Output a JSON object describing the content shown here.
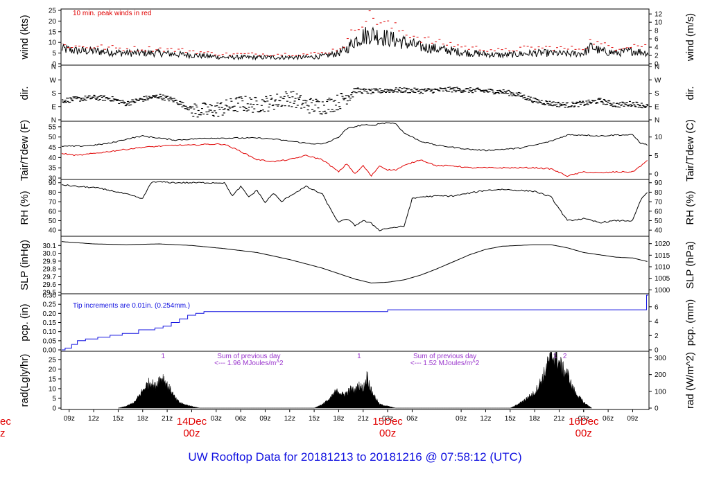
{
  "title": "UW Rooftop Data for 20181213  to  20181216 @ 07:58:12  (UTC)",
  "colors": {
    "text": "#000000",
    "peak": "#e00000",
    "dew": "#e00000",
    "precip": "#1010e0",
    "note": "#9933cc",
    "title": "#1010e0"
  },
  "time_axis": {
    "hours_start": 8.0,
    "hours_end": 80.0,
    "tick_hours": [
      9,
      12,
      15,
      18,
      21,
      27,
      30,
      33,
      36,
      39,
      42,
      45,
      48,
      51,
      57,
      60,
      63,
      66,
      69,
      72,
      75,
      78
    ],
    "tick_labels": [
      "09z",
      "12z",
      "15z",
      "18z",
      "21z",
      "03z",
      "06z",
      "09z",
      "12z",
      "15z",
      "18z",
      "21z",
      "03z",
      "06z",
      "09z",
      "12z",
      "15z",
      "18z",
      "21z",
      "03z",
      "06z",
      "09z"
    ],
    "day_ticks": [
      {
        "hour": 24,
        "label": "14Dec",
        "sub": "00z"
      },
      {
        "hour": 48,
        "label": "15Dec",
        "sub": "00z"
      },
      {
        "hour": 72,
        "label": "16Dec",
        "sub": "00z"
      }
    ],
    "left_cut": {
      "label": "ec",
      "sub": "z"
    }
  },
  "chart_data": [
    {
      "type": "line",
      "id": "wind",
      "ylabel_left": "wind (kts)",
      "ylabel_right": "wind (m/s)",
      "ylim": [
        0,
        25
      ],
      "yticks_left": [
        0,
        5,
        10,
        15,
        20,
        25
      ],
      "right_ylim": [
        0,
        12.86
      ],
      "yticks_right": [
        0,
        2,
        4,
        6,
        8,
        10,
        12
      ],
      "annotation": "10 min. peak winds in red",
      "series": [
        {
          "name": "wind",
          "x": [
            8,
            10,
            12,
            14,
            16,
            18,
            20,
            22,
            24,
            26,
            28,
            30,
            32,
            34,
            36,
            38,
            40,
            42,
            43,
            44,
            45,
            46,
            47,
            48,
            50,
            52,
            54,
            56,
            58,
            60,
            62,
            64,
            66,
            68,
            70,
            72,
            73,
            74,
            76,
            78,
            80
          ],
          "y": [
            7,
            6,
            6,
            5.5,
            5,
            5,
            5,
            4.5,
            4,
            3.5,
            3,
            3,
            3,
            3,
            3,
            3,
            3.5,
            5,
            7,
            11,
            13,
            14,
            13,
            12,
            10,
            8,
            7,
            6,
            5,
            4.5,
            4,
            4.5,
            5,
            5,
            4.5,
            5,
            8,
            6,
            5,
            6,
            5
          ]
        },
        {
          "name": "10 min. peak winds",
          "x": [
            8,
            10,
            12,
            14,
            16,
            18,
            20,
            22,
            24,
            26,
            28,
            30,
            32,
            34,
            36,
            38,
            40,
            42,
            43,
            44,
            45,
            46,
            47,
            48,
            50,
            52,
            54,
            56,
            58,
            60,
            62,
            64,
            66,
            68,
            70,
            72,
            73,
            74,
            76,
            78,
            80
          ],
          "y": [
            9,
            8,
            8,
            7.5,
            7,
            7,
            7,
            6.5,
            6,
            5,
            4.5,
            4.5,
            4.5,
            4.5,
            4.5,
            4.5,
            5,
            7,
            10,
            17,
            21,
            22,
            20,
            18,
            15,
            12,
            10,
            9,
            7.5,
            7,
            6,
            7,
            7.5,
            7.5,
            7,
            7.5,
            11,
            9,
            7.5,
            9,
            8
          ]
        }
      ]
    },
    {
      "type": "scatter",
      "id": "dir",
      "ylabel_left": "dir.",
      "ylabel_right": "dir.",
      "ylim": [
        0,
        360
      ],
      "yticks": [
        0,
        90,
        180,
        270,
        360
      ],
      "yticklabels": [
        "N",
        "E",
        "S",
        "W",
        "N"
      ],
      "series": [
        {
          "name": "direction",
          "x": [
            8,
            10,
            12,
            14,
            16,
            18,
            20,
            22,
            24,
            26,
            28,
            30,
            32,
            34,
            36,
            38,
            40,
            42,
            44,
            46,
            48,
            50,
            52,
            54,
            56,
            58,
            60,
            62,
            64,
            66,
            68,
            70,
            72,
            74,
            76,
            78,
            80
          ],
          "y": [
            130,
            140,
            150,
            145,
            110,
            140,
            160,
            130,
            70,
            60,
            80,
            110,
            100,
            120,
            150,
            100,
            90,
            120,
            200,
            190,
            200,
            200,
            195,
            200,
            205,
            200,
            195,
            190,
            170,
            130,
            110,
            100,
            110,
            130,
            100,
            110,
            90
          ]
        }
      ]
    },
    {
      "type": "line",
      "id": "temp",
      "ylabel_left": "Tair/Tdew (F)",
      "ylabel_right": "Tair/Tdew (C)",
      "ylim": [
        30,
        57
      ],
      "yticks_left": [
        30,
        35,
        40,
        45,
        50,
        55
      ],
      "right_ylim": [
        -1.11,
        13.89
      ],
      "yticks_right": [
        0,
        5,
        10
      ],
      "series": [
        {
          "name": "Tair",
          "x": [
            8,
            10,
            12,
            14,
            16,
            18,
            20,
            22,
            24,
            26,
            28,
            30,
            32,
            34,
            36,
            38,
            40,
            41,
            42,
            43,
            44,
            45,
            46,
            47,
            48,
            49,
            50,
            52,
            54,
            56,
            58,
            60,
            62,
            64,
            66,
            68,
            70,
            72,
            74,
            76,
            78,
            79,
            80
          ],
          "y": [
            45.5,
            45.5,
            46,
            47,
            49,
            50.5,
            49.5,
            48.5,
            49,
            49.5,
            49.5,
            49.5,
            49.5,
            49,
            48,
            47,
            46.5,
            48,
            50,
            54,
            55,
            56,
            55.5,
            56.5,
            57,
            56.5,
            52,
            48,
            46,
            45,
            44,
            43.5,
            44,
            44.5,
            46,
            48,
            51,
            51,
            50.5,
            51,
            51,
            47,
            46
          ]
        },
        {
          "name": "Tdew",
          "x": [
            8,
            10,
            12,
            14,
            16,
            18,
            20,
            22,
            24,
            26,
            28,
            30,
            32,
            34,
            36,
            38,
            40,
            41,
            42,
            43,
            44,
            45,
            46,
            47,
            48,
            49,
            50,
            52,
            54,
            56,
            58,
            60,
            62,
            64,
            66,
            68,
            70,
            72,
            74,
            76,
            78,
            79,
            80
          ],
          "y": [
            42,
            41,
            42,
            43,
            44,
            45,
            45.5,
            46,
            46,
            46.5,
            46.5,
            43,
            39,
            38,
            39,
            41,
            39,
            36,
            33,
            37,
            32,
            36,
            31,
            36,
            34,
            34,
            36,
            39,
            36,
            36,
            35,
            35,
            35,
            35,
            35,
            34.5,
            31,
            33,
            32.5,
            33,
            33,
            36,
            39
          ]
        }
      ]
    },
    {
      "type": "line",
      "id": "rh",
      "ylabel_left": "RH (%)",
      "ylabel_right": "RH (%)",
      "ylim": [
        35,
        92
      ],
      "yticks": [
        40,
        50,
        60,
        70,
        80,
        90
      ],
      "series": [
        {
          "name": "RH",
          "x": [
            8,
            10,
            12,
            14,
            16,
            18,
            19,
            20,
            22,
            24,
            26,
            28,
            29,
            30,
            31,
            32,
            33,
            34,
            35,
            36,
            38,
            40,
            41,
            42,
            43,
            44,
            45,
            46,
            47,
            48,
            50,
            51,
            52,
            54,
            56,
            58,
            60,
            62,
            64,
            66,
            68,
            70,
            72,
            74,
            76,
            78,
            79,
            80
          ],
          "y": [
            88,
            86,
            85,
            82,
            78,
            73,
            90,
            91,
            90,
            90,
            90,
            90,
            76,
            86,
            75,
            82,
            69,
            79,
            70,
            76,
            86,
            78,
            62,
            48,
            52,
            45,
            50,
            47,
            40,
            42,
            44,
            73,
            75,
            76,
            76,
            79,
            82,
            83,
            82,
            81,
            75,
            50,
            52,
            48,
            50,
            50,
            72,
            82
          ]
        }
      ]
    },
    {
      "type": "line",
      "id": "slp",
      "ylabel_left": "SLP (inHg)",
      "ylabel_right": "SLP (hPa)",
      "ylim": [
        29.5,
        30.2
      ],
      "yticks_left": [
        29.5,
        29.6,
        29.7,
        29.8,
        29.9,
        30.0,
        30.1
      ],
      "right_ylim": [
        998.9,
        1022.6
      ],
      "yticks_right": [
        1000,
        1005,
        1010,
        1015,
        1020
      ],
      "series": [
        {
          "name": "SLP",
          "x": [
            8,
            12,
            16,
            20,
            24,
            28,
            32,
            36,
            40,
            44,
            46,
            48,
            50,
            52,
            54,
            56,
            58,
            60,
            62,
            64,
            66,
            68,
            70,
            72,
            74,
            76,
            78,
            80
          ],
          "y": [
            30.15,
            30.12,
            30.11,
            30.12,
            30.1,
            30.06,
            30.01,
            29.92,
            29.81,
            29.67,
            29.62,
            29.63,
            29.66,
            29.72,
            29.8,
            29.89,
            29.98,
            30.05,
            30.09,
            30.1,
            30.11,
            30.11,
            30.07,
            30.01,
            29.98,
            29.95,
            29.94,
            29.89
          ]
        }
      ]
    },
    {
      "type": "line",
      "id": "pcp",
      "ylabel_left": "pcp. (in)",
      "ylabel_right": "pcp. (mm)",
      "ylim": [
        0,
        0.3
      ],
      "yticks_left": [
        0.0,
        0.05,
        0.1,
        0.15,
        0.2,
        0.25,
        0.3
      ],
      "right_ylim": [
        0,
        7.62
      ],
      "yticks_right": [
        0,
        2,
        4,
        6
      ],
      "annotation": "Tip increments are 0.01in. (0.254mm.)",
      "series": [
        {
          "name": "accumulated precip",
          "step": true,
          "x": [
            8,
            8.5,
            9.3,
            10,
            11,
            12.5,
            14,
            15.5,
            17.5,
            19.5,
            20.5,
            21.5,
            22.5,
            23.5,
            24.5,
            25.5,
            26.5,
            27.5,
            48,
            79.7,
            80
          ],
          "y": [
            0.0,
            0.01,
            0.03,
            0.05,
            0.06,
            0.07,
            0.08,
            0.09,
            0.11,
            0.12,
            0.13,
            0.15,
            0.17,
            0.19,
            0.2,
            0.21,
            0.21,
            0.21,
            0.22,
            0.3,
            0.3
          ]
        }
      ]
    },
    {
      "type": "area",
      "id": "rad",
      "ylabel_left": "rad(Lgly/hr)",
      "ylabel_right": "rad (W/m^2)",
      "ylim": [
        0,
        28.5
      ],
      "yticks_left": [
        0,
        5,
        10,
        15,
        20,
        25
      ],
      "right_ylim": [
        0,
        331
      ],
      "yticks_right": [
        0,
        100,
        200,
        300
      ],
      "markers": [
        {
          "hour": 20.5,
          "label": "1"
        },
        {
          "hour": 44.5,
          "label": "1"
        },
        {
          "hour": 68.5,
          "label": "1"
        },
        {
          "hour": 69.7,
          "label": "2"
        }
      ],
      "notes": [
        {
          "hour": 31,
          "lines": [
            "Sum of previous day",
            "<--- 1.96 MJoules/m^2"
          ]
        },
        {
          "hour": 55,
          "lines": [
            "Sum of previous day",
            "<--- 1.52 MJoules/m^2"
          ]
        }
      ],
      "series": [
        {
          "name": "radiation",
          "x": [
            15,
            16,
            17,
            17.5,
            18,
            18.5,
            19,
            19.5,
            20,
            20.5,
            21,
            21.5,
            22,
            22.5,
            23,
            24,
            25,
            39,
            40,
            41,
            41.5,
            42,
            42.5,
            43,
            43.5,
            44,
            44.5,
            45,
            45.5,
            46,
            47,
            48,
            49,
            63,
            64,
            65,
            66,
            66.5,
            67,
            67.5,
            68,
            68.5,
            69,
            69.5,
            70,
            70.5,
            71,
            72,
            73
          ],
          "y": [
            0,
            1,
            3,
            6,
            9,
            12,
            14,
            11,
            15,
            16,
            12,
            9,
            5,
            3,
            2,
            1,
            0,
            0,
            2,
            5,
            8,
            9,
            7,
            8,
            10,
            9,
            12,
            10,
            17,
            9,
            2,
            1,
            0,
            0,
            2,
            5,
            8,
            12,
            16,
            22,
            26,
            28,
            24,
            20,
            18,
            12,
            8,
            3,
            0
          ]
        }
      ]
    }
  ]
}
